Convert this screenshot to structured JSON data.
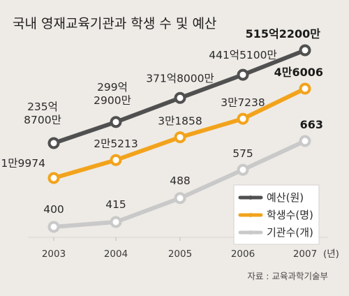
{
  "colors": {
    "budget": "#505050",
    "students": "#f2a31c",
    "institutions": "#c9c9c9",
    "background": "#eeebe6"
  },
  "chart_data": {
    "type": "line",
    "title": "국내 영재교육기관과 학생 수 및 예산",
    "source": "자료 : 교육과학기술부",
    "x": [
      "2003",
      "2004",
      "2005",
      "2006",
      "2007"
    ],
    "x_unit": "(년)",
    "grid": false,
    "legend_position": "bottom-right",
    "series": [
      {
        "name": "예산(원)",
        "color": "#505050",
        "values": [
          23587000000,
          29929000000,
          37180000000,
          44151000000,
          51522000000
        ],
        "labels": [
          [
            "235억",
            "8700만"
          ],
          [
            "299억",
            "2900만"
          ],
          [
            "371억8000만"
          ],
          [
            "441억5100만"
          ],
          [
            "515억2200만"
          ]
        ]
      },
      {
        "name": "학생수(명)",
        "color": "#f2a31c",
        "values": [
          19974,
          25213,
          31858,
          37238,
          46006
        ],
        "labels": [
          [
            "1만9974"
          ],
          [
            "2만5213"
          ],
          [
            "3만1858"
          ],
          [
            "3만7238"
          ],
          [
            "4만6006"
          ]
        ]
      },
      {
        "name": "기관수(개)",
        "color": "#c9c9c9",
        "values": [
          400,
          415,
          488,
          575,
          663
        ],
        "labels": [
          [
            "400"
          ],
          [
            "415"
          ],
          [
            "488"
          ],
          [
            "575"
          ],
          [
            "663"
          ]
        ]
      }
    ]
  }
}
